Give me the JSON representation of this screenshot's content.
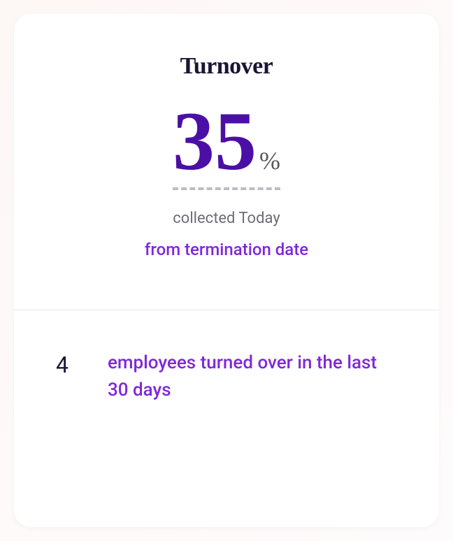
{
  "card": {
    "title": "Turnover",
    "metric": {
      "value": "35",
      "unit": "%",
      "value_fontsize": 120,
      "unit_fontsize": 36,
      "value_color": "#4b0fa6",
      "unit_color": "#5a5660",
      "underline_color": "#bfbcc5"
    },
    "title_fontsize": 34,
    "title_color": "#1a1536",
    "collected_text": "collected Today",
    "collected_fontsize": 22,
    "collected_color": "#6f6a78",
    "subtext": "from termination date",
    "subtext_fontsize": 24,
    "subtext_color": "#8028d9",
    "divider_color": "#e8e6eb",
    "stat": {
      "count": "4",
      "count_fontsize": 32,
      "count_color": "#1a1536",
      "description": "employees turned over in the last 30 days",
      "description_fontsize": 26,
      "description_color": "#8028d9"
    },
    "background_color": "#ffffff"
  }
}
